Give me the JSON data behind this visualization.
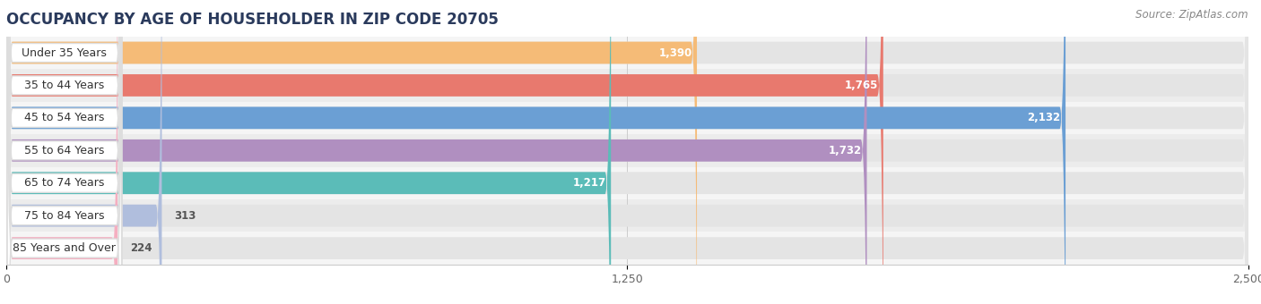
{
  "title": "OCCUPANCY BY AGE OF HOUSEHOLDER IN ZIP CODE 20705",
  "source": "Source: ZipAtlas.com",
  "categories": [
    "Under 35 Years",
    "35 to 44 Years",
    "45 to 54 Years",
    "55 to 64 Years",
    "65 to 74 Years",
    "75 to 84 Years",
    "85 Years and Over"
  ],
  "values": [
    1390,
    1765,
    2132,
    1732,
    1217,
    313,
    224
  ],
  "bar_colors": [
    "#f5bb77",
    "#e8796e",
    "#6b9fd4",
    "#b08fc0",
    "#5bbcb8",
    "#b0bedd",
    "#f5aec0"
  ],
  "bar_bg_color": "#e4e4e4",
  "xlim": [
    0,
    2500
  ],
  "xticks": [
    0,
    1250,
    2500
  ],
  "xtick_labels": [
    "0",
    "1,250",
    "2,500"
  ],
  "title_fontsize": 12,
  "source_fontsize": 8.5,
  "label_fontsize": 9,
  "value_fontsize": 8.5,
  "value_label_color_inside": "#ffffff",
  "value_label_color_outside": "#555555",
  "background_color": "#ffffff",
  "bar_height": 0.68,
  "row_bg_even": "#f5f5f5",
  "row_bg_odd": "#ececec",
  "pill_bg": "#ffffff",
  "pill_border": "#dddddd"
}
